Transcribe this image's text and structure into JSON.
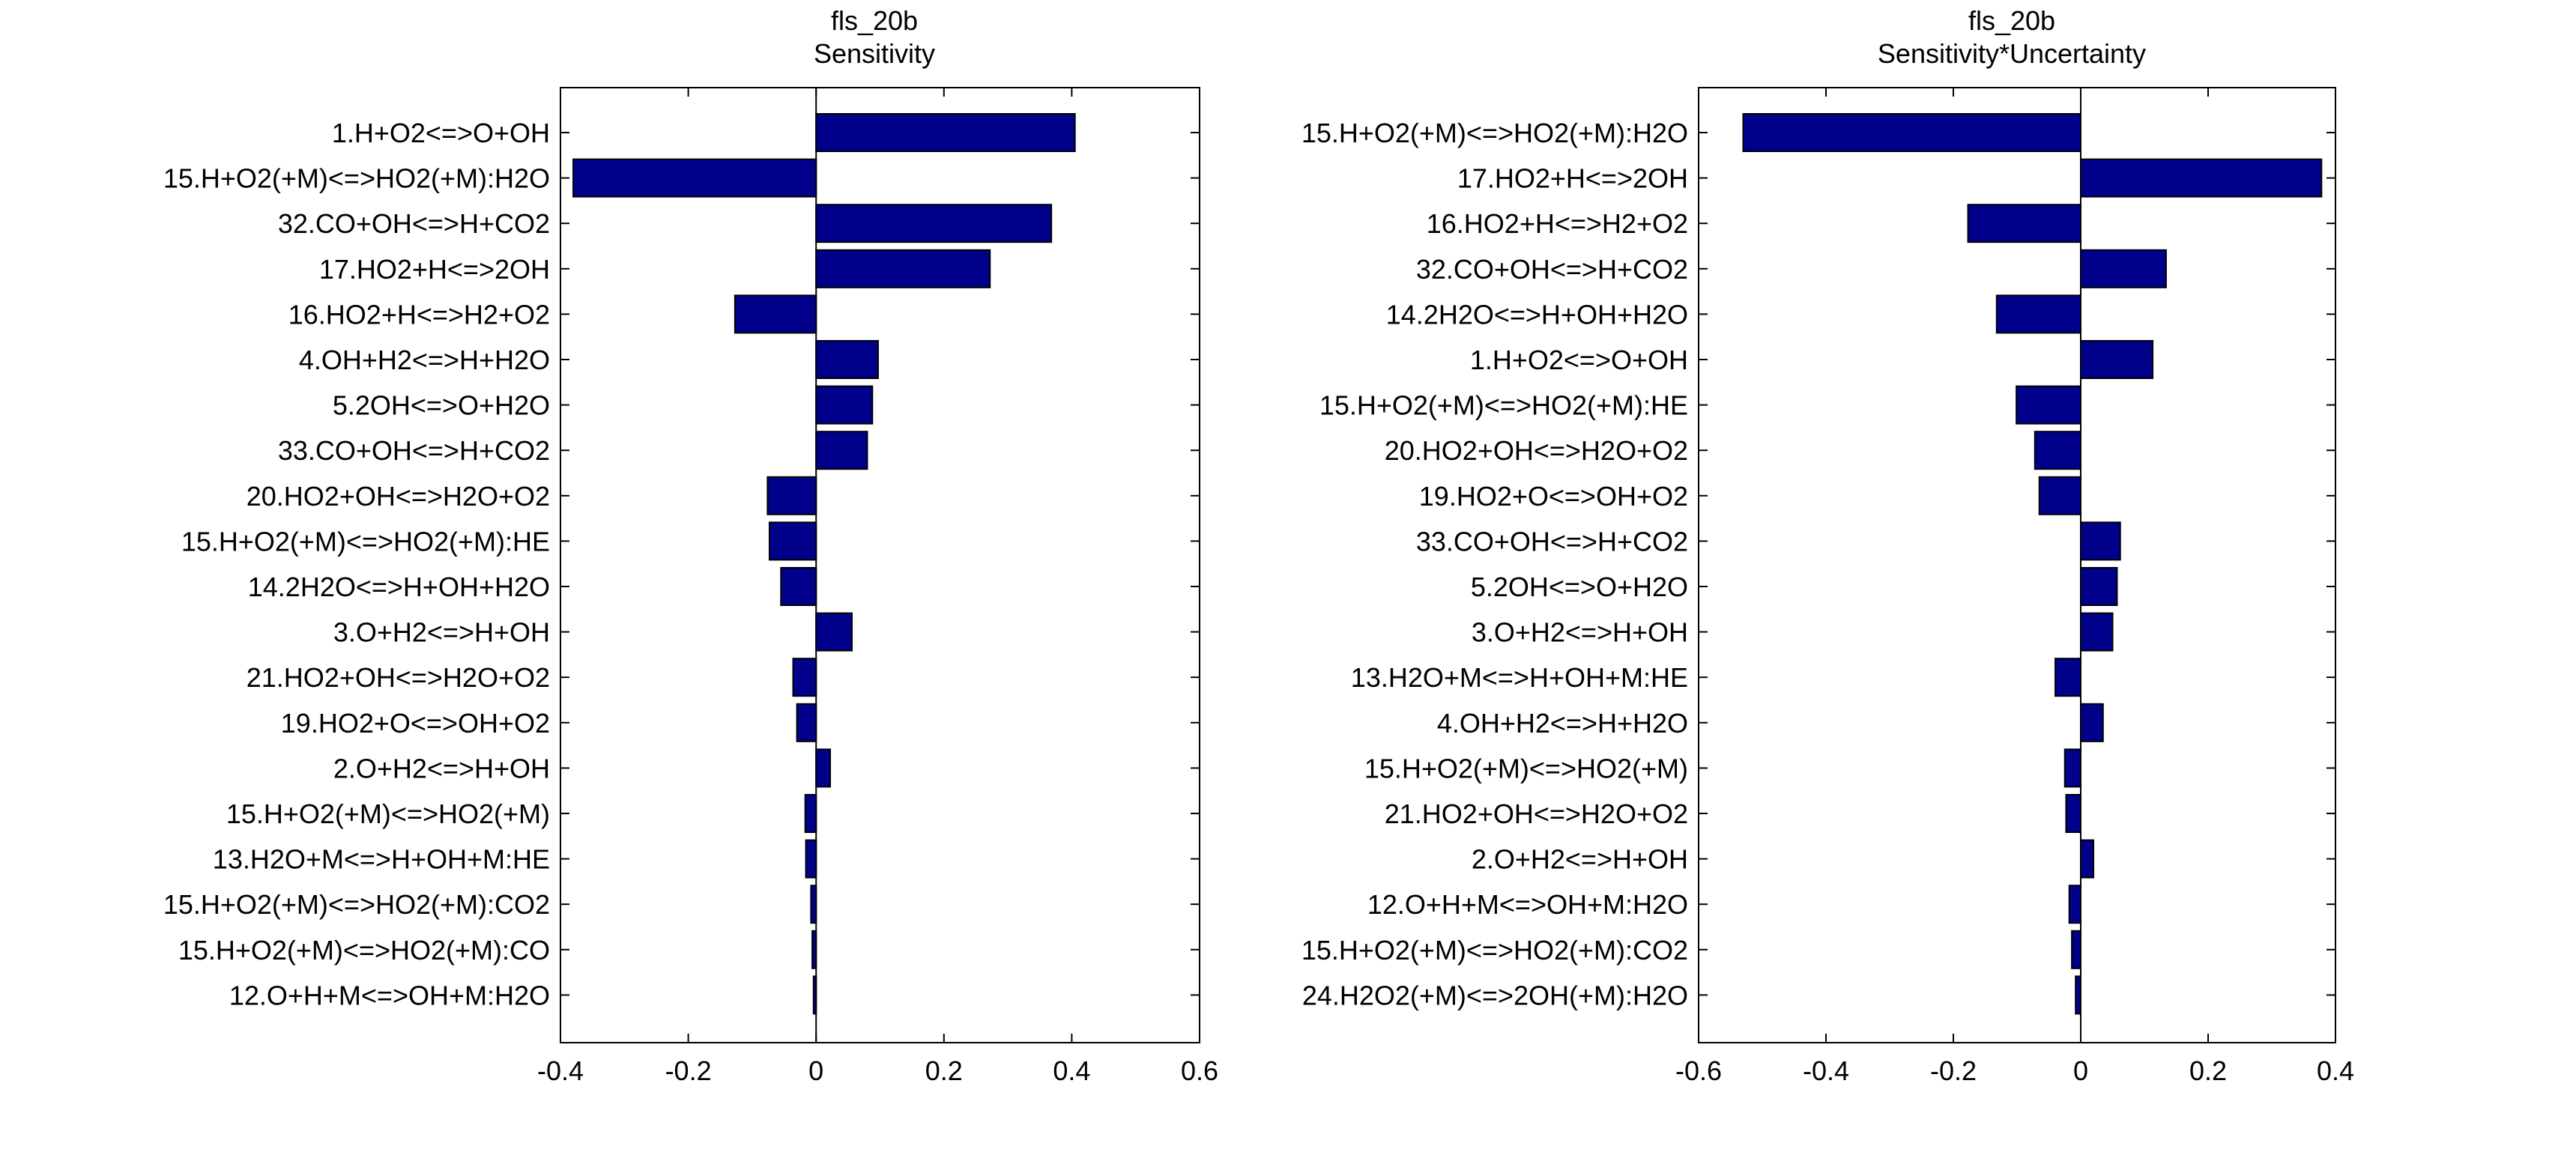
{
  "chart_data": [
    {
      "type": "bar",
      "orientation": "horizontal",
      "title": "fls_20b",
      "subtitle": "Sensitivity",
      "xlim": [
        -0.4,
        0.6
      ],
      "xticks": [
        -0.4,
        -0.2,
        0,
        0.2,
        0.4,
        0.6
      ],
      "xtick_labels": [
        "-0.4",
        "-0.2",
        "0",
        "0.2",
        "0.4",
        "0.6"
      ],
      "bar_color": "#00008b",
      "categories": [
        "1.H+O2<=>O+OH",
        "15.H+O2(+M)<=>HO2(+M):H2O",
        "32.CO+OH<=>H+CO2",
        "17.HO2+H<=>2OH",
        "16.HO2+H<=>H2+O2",
        "4.OH+H2<=>H+H2O",
        "5.2OH<=>O+H2O",
        "33.CO+OH<=>H+CO2",
        "20.HO2+OH<=>H2O+O2",
        "15.H+O2(+M)<=>HO2(+M):HE",
        "14.2H2O<=>H+OH+H2O",
        "3.O+H2<=>H+OH",
        "21.HO2+OH<=>H2O+O2",
        "19.HO2+O<=>OH+O2",
        "2.O+H2<=>H+OH",
        "15.H+O2(+M)<=>HO2(+M)",
        "13.H2O+M<=>H+OH+M:HE",
        "15.H+O2(+M)<=>HO2(+M):CO2",
        "15.H+O2(+M)<=>HO2(+M):CO",
        "12.O+H+M<=>OH+M:H2O"
      ],
      "values": [
        0.405,
        -0.38,
        0.368,
        0.272,
        -0.127,
        0.097,
        0.088,
        0.08,
        -0.076,
        -0.073,
        -0.055,
        0.056,
        -0.036,
        -0.03,
        0.022,
        -0.017,
        -0.016,
        -0.008,
        -0.006,
        -0.004
      ]
    },
    {
      "type": "bar",
      "orientation": "horizontal",
      "title": "fls_20b",
      "subtitle": "Sensitivity*Uncertainty",
      "xlim": [
        -0.6,
        0.4
      ],
      "xticks": [
        -0.6,
        -0.4,
        -0.2,
        0,
        0.2,
        0.4
      ],
      "xtick_labels": [
        "-0.6",
        "-0.4",
        "-0.2",
        "0",
        "0.2",
        "0.4"
      ],
      "bar_color": "#00008b",
      "categories": [
        "15.H+O2(+M)<=>HO2(+M):H2O",
        "17.HO2+H<=>2OH",
        "16.HO2+H<=>H2+O2",
        "32.CO+OH<=>H+CO2",
        "14.2H2O<=>H+OH+H2O",
        "1.H+O2<=>O+OH",
        "15.H+O2(+M)<=>HO2(+M):HE",
        "20.HO2+OH<=>H2O+O2",
        "19.HO2+O<=>OH+O2",
        "33.CO+OH<=>H+CO2",
        "5.2OH<=>O+H2O",
        "3.O+H2<=>H+OH",
        "13.H2O+M<=>H+OH+M:HE",
        "4.OH+H2<=>H+H2O",
        "15.H+O2(+M)<=>HO2(+M)",
        "21.HO2+OH<=>H2O+O2",
        "2.O+H2<=>H+OH",
        "12.O+H+M<=>OH+M:H2O",
        "15.H+O2(+M)<=>HO2(+M):CO2",
        "24.H2O2(+M)<=>2OH(+M):H2O"
      ],
      "values": [
        -0.53,
        0.378,
        -0.177,
        0.134,
        -0.132,
        0.113,
        -0.101,
        -0.072,
        -0.065,
        0.062,
        0.057,
        0.05,
        -0.04,
        0.035,
        -0.025,
        -0.023,
        0.02,
        -0.018,
        -0.014,
        -0.008
      ]
    }
  ]
}
